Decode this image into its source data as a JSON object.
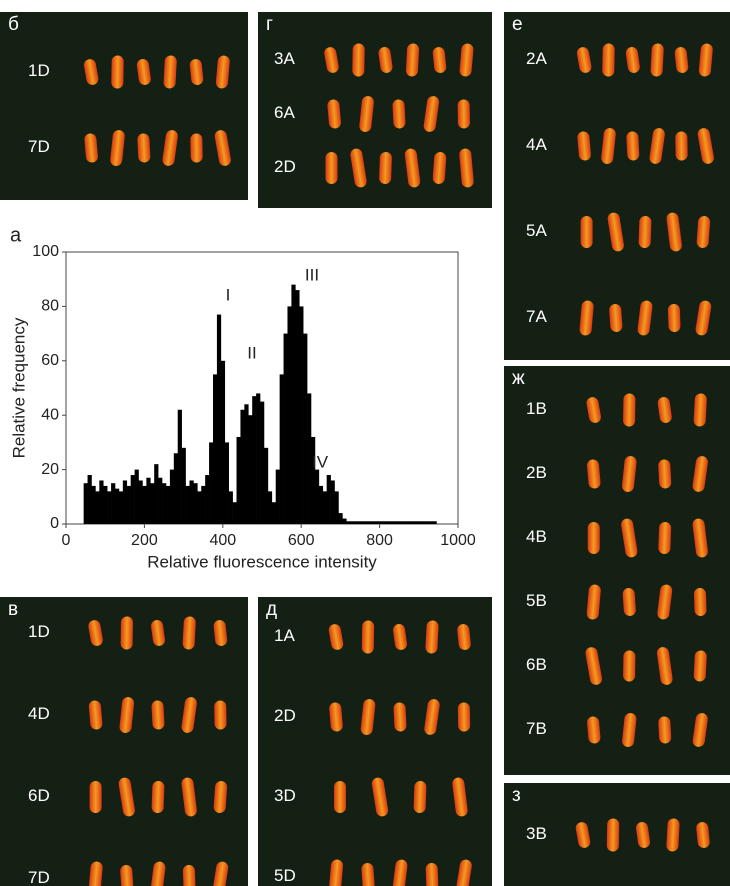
{
  "panels": [
    {
      "label": "б",
      "rows": [
        "1D",
        "7D"
      ]
    },
    {
      "label": "г",
      "rows": [
        "3A",
        "6A",
        "2D"
      ]
    },
    {
      "label": "е",
      "rows": [
        "2A",
        "4A",
        "5A",
        "7A"
      ]
    },
    {
      "label": "ж",
      "rows": [
        "1B",
        "2B",
        "4B",
        "5B",
        "6B",
        "7B"
      ]
    },
    {
      "label": "з",
      "rows": [
        "3B"
      ]
    },
    {
      "label": "в",
      "rows": [
        "1D",
        "4D",
        "6D",
        "7D"
      ]
    },
    {
      "label": "д",
      "rows": [
        "1A",
        "2D",
        "3D",
        "5D"
      ]
    }
  ],
  "chart_data": {
    "type": "bar",
    "panel_label": "a",
    "xlabel": "Relative fluorescence intensity",
    "ylabel": "Relative frequency",
    "annotations": [
      "I",
      "II",
      "III",
      "IV"
    ],
    "color": "#000000",
    "x": [
      50,
      60,
      70,
      80,
      90,
      100,
      110,
      120,
      130,
      140,
      150,
      160,
      170,
      180,
      190,
      200,
      210,
      220,
      230,
      240,
      250,
      260,
      270,
      280,
      290,
      300,
      310,
      320,
      330,
      340,
      350,
      360,
      370,
      380,
      390,
      400,
      410,
      420,
      430,
      440,
      450,
      460,
      470,
      480,
      490,
      500,
      510,
      520,
      530,
      540,
      550,
      560,
      570,
      580,
      590,
      600,
      610,
      620,
      630,
      640,
      650,
      660,
      670,
      680,
      690,
      700,
      710,
      720,
      730,
      740,
      750,
      760,
      770,
      780,
      790,
      800,
      810,
      820,
      830,
      840,
      850,
      860,
      870,
      880,
      890,
      900,
      910,
      920,
      930,
      940
    ],
    "values": [
      15,
      18,
      14,
      12,
      16,
      14,
      12,
      15,
      13,
      12,
      16,
      14,
      18,
      20,
      16,
      14,
      17,
      15,
      22,
      17,
      15,
      14,
      20,
      26,
      42,
      28,
      14,
      16,
      15,
      12,
      14,
      18,
      30,
      55,
      77,
      60,
      30,
      12,
      8,
      32,
      42,
      44,
      40,
      47,
      48,
      45,
      28,
      12,
      8,
      20,
      55,
      70,
      80,
      88,
      86,
      80,
      70,
      48,
      32,
      20,
      14,
      12,
      18,
      16,
      12,
      4,
      2,
      1,
      1,
      1,
      1,
      1,
      1,
      1,
      1,
      1,
      1,
      1,
      1,
      1,
      1,
      1,
      1,
      1,
      1,
      1,
      1,
      1,
      1,
      1
    ],
    "xlim": [
      0,
      1000
    ],
    "xticks": [
      0,
      200,
      400,
      600,
      800,
      1000
    ],
    "ylim": [
      0,
      100
    ],
    "yticks": [
      0,
      20,
      40,
      60,
      80,
      100
    ]
  }
}
